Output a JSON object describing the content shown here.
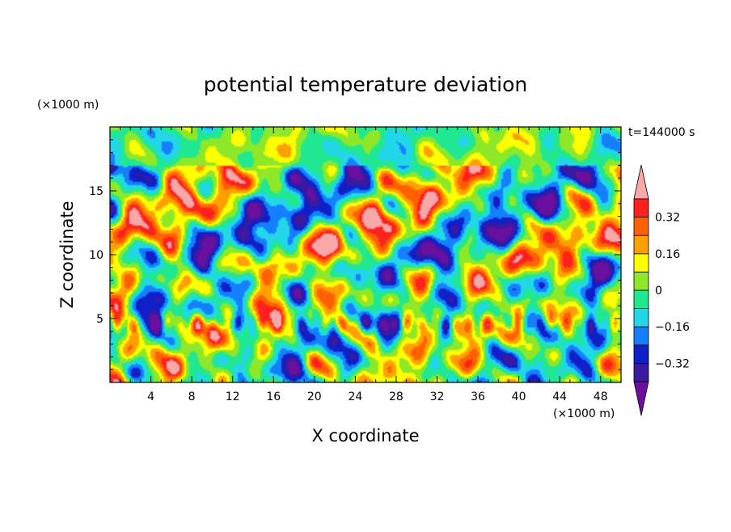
{
  "chart_data": {
    "type": "heatmap",
    "title": "potential temperature deviation",
    "xlabel": "X coordinate",
    "ylabel": "Z coordinate",
    "x_unit_label": "(×1000 m)",
    "y_unit_label": "(×1000 m)",
    "time_label": "t=144000 s",
    "xlim": [
      0,
      50
    ],
    "ylim": [
      0,
      20
    ],
    "x_ticks": [
      4,
      8,
      12,
      16,
      20,
      24,
      28,
      32,
      36,
      40,
      44,
      48
    ],
    "y_ticks": [
      5,
      10,
      15
    ],
    "colorbar": {
      "levels": [
        -0.4,
        -0.32,
        -0.24,
        -0.16,
        -0.08,
        0,
        0.08,
        0.16,
        0.24,
        0.32,
        0.4
      ],
      "tick_labels": [
        {
          "label": "0.32",
          "value": 0.32
        },
        {
          "label": "0.16",
          "value": 0.16
        },
        {
          "label": "0",
          "value": 0
        },
        {
          "label": "−0.16",
          "value": -0.16
        },
        {
          "label": "−0.32",
          "value": -0.32
        }
      ],
      "colors": [
        "#6a0fa0",
        "#3a1aa0",
        "#1020c8",
        "#1480ff",
        "#22d8e8",
        "#20e890",
        "#8ee828",
        "#ffff00",
        "#ffa000",
        "#ff6000",
        "#ff2020",
        "#f8a8a8"
      ]
    }
  }
}
